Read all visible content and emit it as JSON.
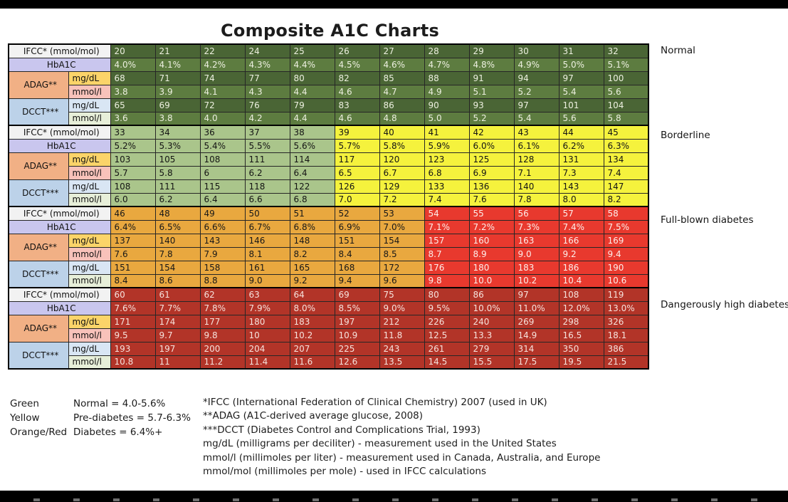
{
  "page_title": "Composite A1C Charts",
  "colors": {
    "normal_green": "#4a6535",
    "normal_green_alt": "#5d7c40",
    "sage_green": "#aac58b",
    "yellow": "#f5f23d",
    "orange": "#e9a83f",
    "red": "#e8392e",
    "dark_red": "#b23428",
    "header_ifcc_bg": "#f2f2f2",
    "header_hba1c_bg": "#c9c6ee",
    "header_adag_bg": "#f1b085",
    "sub_adag_mgdl_bg": "#fbd469",
    "sub_adag_mmoll_bg": "#f8c2ba",
    "header_dcct_bg": "#bcd2e9",
    "sub_dcct_mgdl_bg": "#d9e6f4",
    "sub_dcct_mmoll_bg": "#e7efd9"
  },
  "row_labels": {
    "ifcc": "IFCC* (mmol/mol)",
    "hba1c": "HbA1C",
    "adag": "ADAG**",
    "dcct": "DCCT***",
    "mgdl": "mg/dL",
    "mmoll": "mmol/l"
  },
  "chart_data": {
    "type": "table",
    "title": "Composite A1C Charts",
    "columns_per_section": 12,
    "sections": [
      {
        "label": "Normal",
        "col_colors": [
          "green",
          "green",
          "green",
          "green",
          "green",
          "green",
          "green",
          "green",
          "green",
          "green",
          "green",
          "green"
        ],
        "rows": {
          "ifcc": [
            "20",
            "21",
            "22",
            "24",
            "25",
            "26",
            "27",
            "28",
            "29",
            "30",
            "31",
            "32"
          ],
          "hba1c": [
            "4.0%",
            "4.1%",
            "4.2%",
            "4.3%",
            "4.4%",
            "4.5%",
            "4.6%",
            "4.7%",
            "4.8%",
            "4.9%",
            "5.0%",
            "5.1%"
          ],
          "adag_mgdl": [
            "68",
            "71",
            "74",
            "77",
            "80",
            "82",
            "85",
            "88",
            "91",
            "94",
            "97",
            "100"
          ],
          "adag_mmoll": [
            "3.8",
            "3.9",
            "4.1",
            "4.3",
            "4.4",
            "4.6",
            "4.7",
            "4.9",
            "5.1",
            "5.2",
            "5.4",
            "5.6"
          ],
          "dcct_mgdl": [
            "65",
            "69",
            "72",
            "76",
            "79",
            "83",
            "86",
            "90",
            "93",
            "97",
            "101",
            "104"
          ],
          "dcct_mmoll": [
            "3.6",
            "3.8",
            "4.0",
            "4.2",
            "4.4",
            "4.6",
            "4.8",
            "5.0",
            "5.2",
            "5.4",
            "5.6",
            "5.8"
          ]
        }
      },
      {
        "label": "Borderline",
        "col_colors": [
          "sage",
          "sage",
          "sage",
          "sage",
          "sage",
          "yellow",
          "yellow",
          "yellow",
          "yellow",
          "yellow",
          "yellow",
          "yellow"
        ],
        "rows": {
          "ifcc": [
            "33",
            "34",
            "36",
            "37",
            "38",
            "39",
            "40",
            "41",
            "42",
            "43",
            "44",
            "45"
          ],
          "hba1c": [
            "5.2%",
            "5.3%",
            "5.4%",
            "5.5%",
            "5.6%",
            "5.7%",
            "5.8%",
            "5.9%",
            "6.0%",
            "6.1%",
            "6.2%",
            "6.3%"
          ],
          "adag_mgdl": [
            "103",
            "105",
            "108",
            "111",
            "114",
            "117",
            "120",
            "123",
            "125",
            "128",
            "131",
            "134"
          ],
          "adag_mmoll": [
            "5.7",
            "5.8",
            "6",
            "6.2",
            "6.4",
            "6.5",
            "6.7",
            "6.8",
            "6.9",
            "7.1",
            "7.3",
            "7.4"
          ],
          "dcct_mgdl": [
            "108",
            "111",
            "115",
            "118",
            "122",
            "126",
            "129",
            "133",
            "136",
            "140",
            "143",
            "147"
          ],
          "dcct_mmoll": [
            "6.0",
            "6.2",
            "6.4",
            "6.6",
            "6.8",
            "7.0",
            "7.2",
            "7.4",
            "7.6",
            "7.8",
            "8.0",
            "8.2"
          ]
        }
      },
      {
        "label": "Full-blown diabetes",
        "col_colors": [
          "orange",
          "orange",
          "orange",
          "orange",
          "orange",
          "orange",
          "orange",
          "red",
          "red",
          "red",
          "red",
          "red"
        ],
        "rows": {
          "ifcc": [
            "46",
            "48",
            "49",
            "50",
            "51",
            "52",
            "53",
            "54",
            "55",
            "56",
            "57",
            "58"
          ],
          "hba1c": [
            "6.4%",
            "6.5%",
            "6.6%",
            "6.7%",
            "6.8%",
            "6.9%",
            "7.0%",
            "7.1%",
            "7.2%",
            "7.3%",
            "7.4%",
            "7.5%"
          ],
          "adag_mgdl": [
            "137",
            "140",
            "143",
            "146",
            "148",
            "151",
            "154",
            "157",
            "160",
            "163",
            "166",
            "169"
          ],
          "adag_mmoll": [
            "7.6",
            "7.8",
            "7.9",
            "8.1",
            "8.2",
            "8.4",
            "8.5",
            "8.7",
            "8.9",
            "9.0",
            "9.2",
            "9.4"
          ],
          "dcct_mgdl": [
            "151",
            "154",
            "158",
            "161",
            "165",
            "168",
            "172",
            "176",
            "180",
            "183",
            "186",
            "190"
          ],
          "dcct_mmoll": [
            "8.4",
            "8.6",
            "8.8",
            "9.0",
            "9.2",
            "9.4",
            "9.6",
            "9.8",
            "10.0",
            "10.2",
            "10.4",
            "10.6"
          ]
        }
      },
      {
        "label": "Dangerously high diabetes",
        "col_colors": [
          "darkred",
          "darkred",
          "darkred",
          "darkred",
          "darkred",
          "darkred",
          "darkred",
          "darkred",
          "darkred",
          "darkred",
          "darkred",
          "darkred"
        ],
        "rows": {
          "ifcc": [
            "60",
            "61",
            "62",
            "63",
            "64",
            "69",
            "75",
            "80",
            "86",
            "97",
            "108",
            "119"
          ],
          "hba1c": [
            "7.6%",
            "7.7%",
            "7.8%",
            "7.9%",
            "8.0%",
            "8.5%",
            "9.0%",
            "9.5%",
            "10.0%",
            "11.0%",
            "12.0%",
            "13.0%"
          ],
          "adag_mgdl": [
            "171",
            "174",
            "177",
            "180",
            "183",
            "197",
            "212",
            "226",
            "240",
            "269",
            "298",
            "326"
          ],
          "adag_mmoll": [
            "9.5",
            "9.7",
            "9.8",
            "10",
            "10.2",
            "10.9",
            "11.8",
            "12.5",
            "13.3",
            "14.9",
            "16.5",
            "18.1"
          ],
          "dcct_mgdl": [
            "193",
            "197",
            "200",
            "204",
            "207",
            "225",
            "243",
            "261",
            "279",
            "314",
            "350",
            "386"
          ],
          "dcct_mmoll": [
            "10.8",
            "11",
            "11.2",
            "11.4",
            "11.6",
            "12.6",
            "13.5",
            "14.5",
            "15.5",
            "17.5",
            "19.5",
            "21.5"
          ]
        }
      }
    ],
    "legend": [
      {
        "color_name": "Green",
        "meaning": "Normal = 4.0-5.6%"
      },
      {
        "color_name": "Yellow",
        "meaning": "Pre-diabetes = 5.7-6.3%"
      },
      {
        "color_name": "Orange/Red",
        "meaning": "Diabetes = 6.4%+"
      }
    ],
    "footnotes": [
      "*IFCC (International Federation of Clinical Chemistry) 2007 (used in UK)",
      "**ADAG (A1C-derived average glucose, 2008)",
      "***DCCT (Diabetes Control and Complications Trial, 1993)",
      "mg/dL (milligrams per deciliter) - measurement used in the United States",
      "mmol/l (millimoles per liter) - measurement used in Canada, Australia, and Europe",
      "mmol/mol (millimoles per mole) - used in IFCC calculations"
    ]
  }
}
